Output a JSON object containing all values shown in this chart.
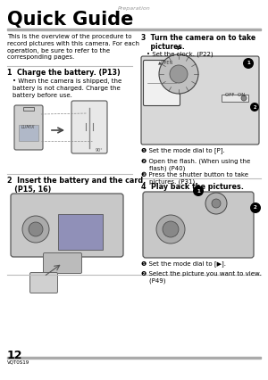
{
  "bg_color": "#ffffff",
  "header_text": "Preparation",
  "title": "Quick Guide",
  "page_number": "12",
  "model_number": "VQT0S19",
  "separator_color": "#bbbbbb",
  "body_text_color": "#000000",
  "header_color": "#999999",
  "intro_text": "This is the overview of the procedure to\nrecord pictures with this camera. For each\noperation, be sure to refer to the\ncorresponding pages.",
  "step1_title": "1  Charge the battery. (P13)",
  "step1_bullet": "When the camera is shipped, the\nbattery is not charged. Charge the\nbattery before use.",
  "step2_title": "2  Insert the battery and the card.",
  "step2_title2": "   (P15, 16)",
  "step3_title": "3  Turn the camera on to take",
  "step3_title2": "    pictures.",
  "step3_bullet": "Set the clock. (P22)",
  "step3_sub1": "❶ Set the mode dial to [P].",
  "step3_sub2": "❷ Open the flash. (When using the\n    flash) (P40)",
  "step3_sub3": "❸ Press the shutter button to take\n    pictures. (P31)",
  "step4_title": "4  Play back the pictures.",
  "step4_sub1": "❶ Set the mode dial to [▶].",
  "step4_sub2": "❷ Select the picture you want to view.\n    (P49)"
}
